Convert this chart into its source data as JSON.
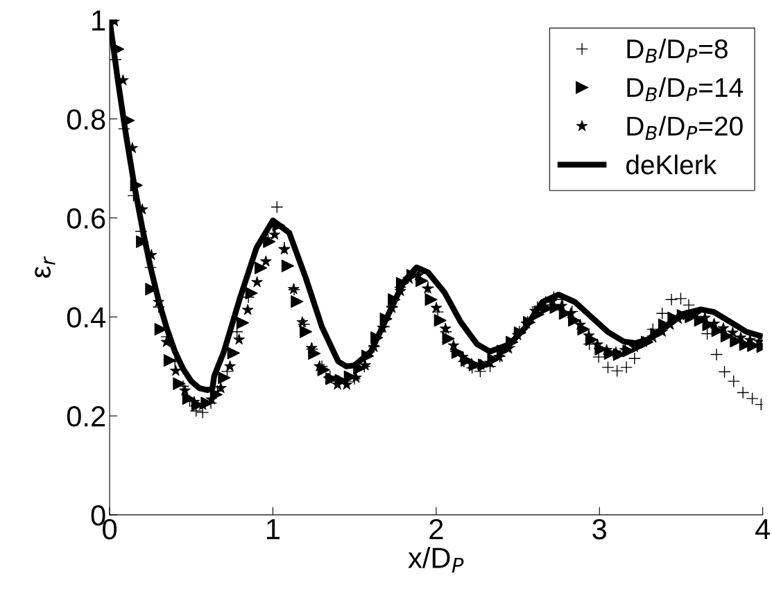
{
  "chart_data": {
    "type": "scatter",
    "xlabel": "x/D$_{P}$",
    "ylabel": "ε$_{r}$",
    "xlim": [
      0,
      4
    ],
    "ylim": [
      0,
      1
    ],
    "xticks": [
      0,
      1,
      2,
      3,
      4
    ],
    "yticks": [
      0,
      0.2,
      0.4,
      0.6,
      0.8,
      1
    ],
    "grid": false,
    "legend": "top right",
    "series": [
      {
        "name": "D$_{B}$/D$_{P}$=8",
        "marker": "cross",
        "color": "#000000",
        "x": [
          0.036,
          0.089,
          0.146,
          0.193,
          0.25,
          0.3,
          0.35,
          0.4,
          0.45,
          0.49,
          0.53,
          0.57,
          0.62,
          0.66,
          0.72,
          0.78,
          0.85,
          0.97,
          1.025,
          1.07,
          1.13,
          1.19,
          1.24,
          1.3,
          1.35,
          1.4,
          1.45,
          1.5,
          1.56,
          1.62,
          1.68,
          1.73,
          1.78,
          1.83,
          1.89,
          1.95,
          2.01,
          2.06,
          2.12,
          2.17,
          2.22,
          2.27,
          2.33,
          2.39,
          2.45,
          2.51,
          2.56,
          2.62,
          2.67,
          2.72,
          2.776,
          2.832,
          2.938,
          2.995,
          3.052,
          3.108,
          3.165,
          3.215,
          3.327,
          3.384,
          3.441,
          3.498,
          3.547,
          3.66,
          3.717,
          3.766,
          3.822,
          3.879,
          3.936,
          3.99
        ],
        "values": [
          0.92,
          0.78,
          0.645,
          0.573,
          0.5,
          0.42,
          0.36,
          0.31,
          0.26,
          0.23,
          0.21,
          0.207,
          0.226,
          0.25,
          0.29,
          0.37,
          0.44,
          0.56,
          0.622,
          0.54,
          0.455,
          0.385,
          0.335,
          0.3,
          0.28,
          0.27,
          0.27,
          0.275,
          0.3,
          0.34,
          0.38,
          0.42,
          0.46,
          0.48,
          0.49,
          0.46,
          0.41,
          0.37,
          0.33,
          0.31,
          0.297,
          0.29,
          0.3,
          0.32,
          0.34,
          0.37,
          0.39,
          0.42,
          0.43,
          0.44,
          0.435,
          0.411,
          0.345,
          0.319,
          0.298,
          0.291,
          0.298,
          0.316,
          0.375,
          0.407,
          0.435,
          0.437,
          0.424,
          0.366,
          0.324,
          0.289,
          0.27,
          0.247,
          0.235,
          0.223
        ]
      },
      {
        "name": "D$_{B}$/D$_{P}$=14",
        "marker": "triangle",
        "color": "#000000",
        "x": [
          0.051,
          0.115,
          0.164,
          0.2,
          0.256,
          0.313,
          0.369,
          0.426,
          0.483,
          0.539,
          0.596,
          0.653,
          0.702,
          0.759,
          0.815,
          0.869,
          0.926,
          0.978,
          1.035,
          1.091,
          1.148,
          1.202,
          1.254,
          1.311,
          1.36,
          1.417,
          1.473,
          1.53,
          1.58,
          1.636,
          1.693,
          1.742,
          1.792,
          1.856,
          1.912,
          1.969,
          2.025,
          2.075,
          2.132,
          2.188,
          2.238,
          2.294,
          2.351,
          2.408,
          2.464,
          2.514,
          2.57,
          2.624,
          2.676,
          2.733,
          2.79,
          2.846,
          2.903,
          2.952,
          3.009,
          3.066,
          3.122,
          3.179,
          3.236,
          3.292,
          3.349,
          3.398,
          3.455,
          3.512,
          3.561,
          3.618,
          3.668,
          3.724,
          3.78,
          3.837,
          3.894,
          3.943,
          4.0
        ],
        "values": [
          0.941,
          0.797,
          0.666,
          0.552,
          0.456,
          0.375,
          0.312,
          0.265,
          0.235,
          0.222,
          0.226,
          0.243,
          0.277,
          0.327,
          0.388,
          0.448,
          0.499,
          0.552,
          0.585,
          0.503,
          0.431,
          0.37,
          0.326,
          0.293,
          0.275,
          0.272,
          0.279,
          0.296,
          0.321,
          0.358,
          0.396,
          0.435,
          0.468,
          0.484,
          0.473,
          0.435,
          0.393,
          0.356,
          0.328,
          0.312,
          0.303,
          0.303,
          0.314,
          0.331,
          0.349,
          0.368,
          0.389,
          0.405,
          0.417,
          0.419,
          0.407,
          0.393,
          0.375,
          0.354,
          0.335,
          0.326,
          0.324,
          0.331,
          0.34,
          0.349,
          0.365,
          0.384,
          0.398,
          0.403,
          0.4,
          0.393,
          0.384,
          0.372,
          0.361,
          0.351,
          0.344,
          0.342,
          0.34
        ]
      },
      {
        "name": "D$_{B}$/D$_{P}$=20",
        "marker": "star",
        "color": "#000000",
        "x": [
          0.03,
          0.082,
          0.139,
          0.2,
          0.256,
          0.3,
          0.348,
          0.405,
          0.461,
          0.518,
          0.57,
          0.624,
          0.681,
          0.737,
          0.793,
          0.846,
          0.903,
          0.957,
          1.011,
          1.07,
          1.127,
          1.18,
          1.237,
          1.285,
          1.342,
          1.396,
          1.452,
          1.509,
          1.565,
          1.619,
          1.672,
          1.729,
          1.781,
          1.835,
          1.891,
          1.948,
          2.001,
          2.057,
          2.106,
          2.163,
          2.217,
          2.273,
          2.33,
          2.386,
          2.443,
          2.499,
          2.553,
          2.606,
          2.658,
          2.712,
          2.768,
          2.825,
          2.882,
          2.935,
          2.988,
          3.044,
          3.101,
          3.157,
          3.214,
          3.27,
          3.327,
          3.384,
          3.433,
          3.482,
          3.532,
          3.589,
          3.646,
          3.702,
          3.759,
          3.816,
          3.865,
          3.922,
          3.978
        ],
        "values": [
          0.997,
          0.878,
          0.741,
          0.617,
          0.525,
          0.43,
          0.349,
          0.291,
          0.251,
          0.228,
          0.222,
          0.233,
          0.256,
          0.3,
          0.354,
          0.414,
          0.47,
          0.512,
          0.566,
          0.536,
          0.456,
          0.389,
          0.337,
          0.3,
          0.275,
          0.263,
          0.263,
          0.277,
          0.302,
          0.339,
          0.378,
          0.418,
          0.452,
          0.477,
          0.484,
          0.457,
          0.418,
          0.376,
          0.342,
          0.319,
          0.305,
          0.303,
          0.307,
          0.319,
          0.336,
          0.363,
          0.386,
          0.412,
          0.421,
          0.432,
          0.422,
          0.407,
          0.384,
          0.362,
          0.344,
          0.333,
          0.328,
          0.333,
          0.339,
          0.349,
          0.358,
          0.37,
          0.384,
          0.396,
          0.403,
          0.405,
          0.398,
          0.386,
          0.377,
          0.368,
          0.358,
          0.353,
          0.35
        ]
      },
      {
        "name": "deKlerk",
        "type": "line",
        "marker": "none",
        "line_style": "solid",
        "color": "#000000",
        "x": [
          0,
          0.05,
          0.1,
          0.15,
          0.2,
          0.25,
          0.3,
          0.35,
          0.4,
          0.45,
          0.5,
          0.55,
          0.6,
          0.63,
          0.64,
          0.7,
          0.8,
          0.9,
          1.0,
          1.1,
          1.2,
          1.3,
          1.4,
          1.45,
          1.5,
          1.6,
          1.7,
          1.8,
          1.88,
          1.95,
          2.05,
          2.15,
          2.25,
          2.33,
          2.45,
          2.55,
          2.65,
          2.75,
          2.85,
          2.95,
          3.05,
          3.15,
          3.22,
          3.3,
          3.4,
          3.5,
          3.62,
          3.7,
          3.8,
          3.9,
          4.0
        ],
        "values": [
          1,
          0.879,
          0.768,
          0.668,
          0.58,
          0.501,
          0.433,
          0.377,
          0.33,
          0.295,
          0.27,
          0.256,
          0.252,
          0.256,
          0.28,
          0.33,
          0.44,
          0.54,
          0.595,
          0.57,
          0.48,
          0.38,
          0.31,
          0.3,
          0.302,
          0.33,
          0.4,
          0.47,
          0.5,
          0.49,
          0.45,
          0.39,
          0.345,
          0.33,
          0.345,
          0.38,
          0.43,
          0.445,
          0.43,
          0.4,
          0.37,
          0.35,
          0.347,
          0.355,
          0.38,
          0.405,
          0.415,
          0.41,
          0.39,
          0.37,
          0.36
        ]
      }
    ]
  }
}
